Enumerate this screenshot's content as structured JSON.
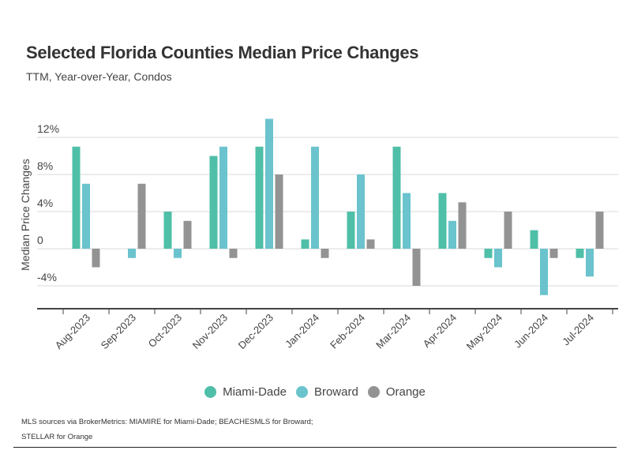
{
  "chart_data": {
    "type": "bar",
    "title": "Selected Florida Counties Median Price Changes",
    "subtitle": "TTM, Year-over-Year, Condos",
    "xlabel": "",
    "ylabel": "Median Price Changes",
    "ylim": [
      -6,
      14
    ],
    "yticks": [
      {
        "value": 12,
        "label": "12%"
      },
      {
        "value": 8,
        "label": "8%"
      },
      {
        "value": 4,
        "label": "4%"
      },
      {
        "value": 0,
        "label": "0"
      },
      {
        "value": -4,
        "label": "-4%"
      }
    ],
    "grid": true,
    "legend_position": "bottom-center",
    "categories": [
      "Aug-2023",
      "Sep-2023",
      "Oct-2023",
      "Nov-2023",
      "Dec-2023",
      "Jan-2024",
      "Feb-2024",
      "Mar-2024",
      "Apr-2024",
      "May-2024",
      "Jun-2024",
      "Jul-2024"
    ],
    "series": [
      {
        "name": "Miami-Dade",
        "color": "#4fbfa8",
        "values": [
          11,
          0,
          4,
          10,
          11,
          1,
          4,
          11,
          6,
          -1,
          2,
          -1
        ]
      },
      {
        "name": "Broward",
        "color": "#6ac3cd",
        "values": [
          7,
          -1,
          -1,
          11,
          14,
          11,
          8,
          6,
          3,
          -2,
          -5,
          -3
        ]
      },
      {
        "name": "Orange",
        "color": "#939393",
        "values": [
          -2,
          7,
          3,
          -1,
          8,
          -1,
          1,
          -4,
          5,
          4,
          -1,
          4
        ]
      }
    ]
  },
  "footer": {
    "line1": "MLS sources via BrokerMetrics: MIAMIRE for Miami-Dade; BEACHESMLS for Broward;",
    "line2": "STELLAR for Orange"
  }
}
